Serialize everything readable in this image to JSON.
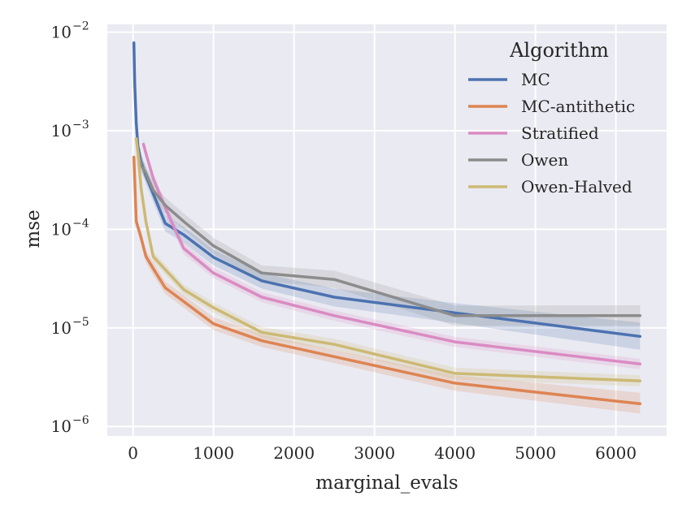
{
  "chart_data": {
    "type": "line",
    "xlabel": "marginal_evals",
    "ylabel": "mse",
    "xlim": [
      -320,
      6630
    ],
    "ylim": [
      8e-07,
      0.012
    ],
    "yscale": "log",
    "xticks": [
      0,
      1000,
      2000,
      3000,
      4000,
      5000,
      6000
    ],
    "xtick_labels": [
      "0",
      "1000",
      "2000",
      "3000",
      "4000",
      "5000",
      "6000"
    ],
    "yticks": [
      0.01,
      0.001,
      0.0001,
      1e-05,
      1e-06
    ],
    "ytick_labels": [
      {
        "base": "10",
        "exp": "−2"
      },
      {
        "base": "10",
        "exp": "−3"
      },
      {
        "base": "10",
        "exp": "−4"
      },
      {
        "base": "10",
        "exp": "−5"
      },
      {
        "base": "10",
        "exp": "−6"
      }
    ],
    "grid": true,
    "background": "#eaeaf2",
    "legend": {
      "title": "Algorithm",
      "placement": "top-right"
    },
    "series": [
      {
        "name": "MC",
        "color": "#4c72b0",
        "points": [
          [
            10,
            0.0078
          ],
          [
            20,
            0.003
          ],
          [
            40,
            0.0012
          ],
          [
            60,
            0.0007
          ],
          [
            100,
            0.00048
          ],
          [
            160,
            0.00035
          ],
          [
            250,
            0.00023
          ],
          [
            400,
            0.000115
          ],
          [
            630,
            8.8e-05
          ],
          [
            1000,
            5.2e-05
          ],
          [
            1600,
            3e-05
          ],
          [
            2500,
            2.05e-05
          ],
          [
            4000,
            1.42e-05
          ],
          [
            6300,
            8.2e-06
          ]
        ],
        "band": [
          [
            10,
            0.0065,
            0.009
          ],
          [
            20,
            0.0025,
            0.0036
          ],
          [
            40,
            0.001,
            0.00145
          ],
          [
            60,
            0.00058,
            0.00084
          ],
          [
            100,
            0.0004,
            0.00058
          ],
          [
            160,
            0.00029,
            0.00042
          ],
          [
            250,
            0.00019,
            0.00028
          ],
          [
            400,
            9.5e-05,
            0.00014
          ],
          [
            630,
            7.3e-05,
            0.000106
          ],
          [
            1000,
            4.3e-05,
            6.2e-05
          ],
          [
            1600,
            2.5e-05,
            3.6e-05
          ],
          [
            2500,
            1.65e-05,
            2.5e-05
          ],
          [
            4000,
            1.12e-05,
            1.78e-05
          ],
          [
            6300,
            6e-06,
            1.13e-05
          ]
        ]
      },
      {
        "name": "MC-antithetic",
        "color": "#dd8452",
        "points": [
          [
            10,
            0.00054
          ],
          [
            40,
            0.00012
          ],
          [
            100,
            8.2e-05
          ],
          [
            160,
            5.3e-05
          ],
          [
            250,
            4e-05
          ],
          [
            400,
            2.55e-05
          ],
          [
            630,
            1.85e-05
          ],
          [
            1000,
            1.1e-05
          ],
          [
            1600,
            7.4e-06
          ],
          [
            2500,
            5.1e-06
          ],
          [
            4000,
            2.75e-06
          ],
          [
            6300,
            1.7e-06
          ]
        ],
        "band": [
          [
            10,
            0.00047,
            0.00062
          ],
          [
            40,
            0.000105,
            0.000138
          ],
          [
            100,
            7.1e-05,
            9.5e-05
          ],
          [
            160,
            4.6e-05,
            6.1e-05
          ],
          [
            250,
            3.45e-05,
            4.65e-05
          ],
          [
            400,
            2.2e-05,
            2.95e-05
          ],
          [
            630,
            1.6e-05,
            2.15e-05
          ],
          [
            1000,
            9.5e-06,
            1.28e-05
          ],
          [
            1600,
            6.4e-06,
            8.6e-06
          ],
          [
            2500,
            4.4e-06,
            5.95e-06
          ],
          [
            4000,
            2.3e-06,
            3.3e-06
          ],
          [
            6300,
            1.35e-06,
            2.2e-06
          ]
        ]
      },
      {
        "name": "Stratified",
        "color": "#da8bc3",
        "points": [
          [
            130,
            0.00073
          ],
          [
            160,
            0.00059
          ],
          [
            250,
            0.00033
          ],
          [
            400,
            0.000165
          ],
          [
            630,
            6.4e-05
          ],
          [
            1000,
            3.6e-05
          ],
          [
            1600,
            2.05e-05
          ],
          [
            2500,
            1.33e-05
          ],
          [
            4000,
            7.2e-06
          ],
          [
            6300,
            4.3e-06
          ]
        ],
        "band": [
          [
            130,
            0.00064,
            0.00083
          ],
          [
            160,
            0.00052,
            0.00067
          ],
          [
            250,
            0.00029,
            0.000375
          ],
          [
            400,
            0.000145,
            0.000188
          ],
          [
            630,
            5.6e-05,
            7.3e-05
          ],
          [
            1000,
            3.2e-05,
            4.1e-05
          ],
          [
            1600,
            1.82e-05,
            2.3e-05
          ],
          [
            2500,
            1.18e-05,
            1.5e-05
          ],
          [
            4000,
            6.4e-06,
            8.1e-06
          ],
          [
            6300,
            3.8e-06,
            4.85e-06
          ]
        ]
      },
      {
        "name": "Owen",
        "color": "#8c8c8c",
        "points": [
          [
            60,
            0.00062
          ],
          [
            100,
            0.00045
          ],
          [
            160,
            0.00037
          ],
          [
            250,
            0.00025
          ],
          [
            400,
            0.000175
          ],
          [
            630,
            0.00012
          ],
          [
            1000,
            6.8e-05
          ],
          [
            1600,
            3.6e-05
          ],
          [
            2500,
            3.1e-05
          ],
          [
            4000,
            1.33e-05
          ],
          [
            6300,
            1.33e-05
          ]
        ],
        "band": [
          [
            60,
            0.00052,
            0.00074
          ],
          [
            100,
            0.00038,
            0.00054
          ],
          [
            160,
            0.00031,
            0.00044
          ],
          [
            250,
            0.00021,
            0.0003
          ],
          [
            400,
            0.000145,
            0.00021
          ],
          [
            630,
            9.9e-05,
            0.000145
          ],
          [
            1000,
            5.6e-05,
            8.2e-05
          ],
          [
            1600,
            3e-05,
            4.3e-05
          ],
          [
            2500,
            2.55e-05,
            3.8e-05
          ],
          [
            4000,
            1.05e-05,
            1.68e-05
          ],
          [
            6300,
            1.05e-05,
            1.7e-05
          ]
        ]
      },
      {
        "name": "Owen-Halved",
        "color": "#ccb974",
        "points": [
          [
            40,
            0.00083
          ],
          [
            60,
            0.0006
          ],
          [
            100,
            0.00026
          ],
          [
            160,
            0.00012
          ],
          [
            250,
            5.3e-05
          ],
          [
            400,
            3.9e-05
          ],
          [
            630,
            2.45e-05
          ],
          [
            1000,
            1.6e-05
          ],
          [
            1600,
            9e-06
          ],
          [
            2500,
            6.8e-06
          ],
          [
            4000,
            3.45e-06
          ],
          [
            6300,
            2.9e-06
          ]
        ],
        "band": [
          [
            40,
            0.00074,
            0.00093
          ],
          [
            60,
            0.00053,
            0.00067
          ],
          [
            100,
            0.00023,
            0.00029
          ],
          [
            160,
            0.000106,
            0.000135
          ],
          [
            250,
            4.7e-05,
            5.95e-05
          ],
          [
            400,
            3.45e-05,
            4.4e-05
          ],
          [
            630,
            2.18e-05,
            2.75e-05
          ],
          [
            1000,
            1.42e-05,
            1.8e-05
          ],
          [
            1600,
            7.9e-06,
            1.02e-05
          ],
          [
            2500,
            5.95e-06,
            7.75e-06
          ],
          [
            4000,
            3e-06,
            3.95e-06
          ],
          [
            6300,
            2.55e-06,
            3.3e-06
          ]
        ]
      }
    ]
  }
}
